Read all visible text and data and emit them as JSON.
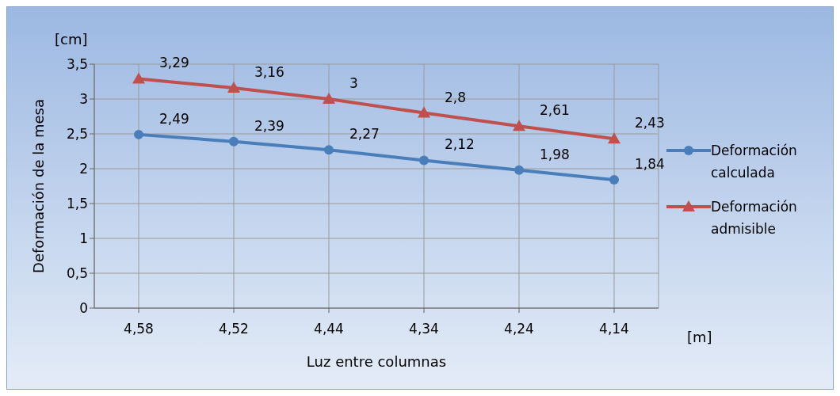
{
  "chart_data": {
    "type": "line",
    "xlabel": "Luz entre columnas",
    "ylabel": "Deformación de la mesa",
    "annotations": [
      "[cm]",
      "[m]"
    ],
    "categories": [
      "4,58",
      "4,52",
      "4,44",
      "4,34",
      "4,24",
      "4,14"
    ],
    "series": [
      {
        "name": "Deformación calculada",
        "color": "#4a7ebb",
        "marker": "circle",
        "values": [
          2.49,
          2.39,
          2.27,
          2.12,
          1.98,
          1.84
        ],
        "value_labels": [
          "2,49",
          "2,39",
          "2,27",
          "2,12",
          "1,98",
          "1,84"
        ]
      },
      {
        "name": "Deformación admisible",
        "color": "#c0504d",
        "marker": "triangle",
        "values": [
          3.29,
          3.16,
          3,
          2.8,
          2.61,
          2.43
        ],
        "value_labels": [
          "3,29",
          "3,16",
          "3",
          "2,8",
          "2,61",
          "2,43"
        ]
      }
    ],
    "ylim": [
      0,
      3.5
    ],
    "yticks": [
      0,
      {
        "value": 0.5,
        "label": "0,5"
      },
      1,
      {
        "value": 1.5,
        "label": "1,5"
      },
      2,
      {
        "value": 2.5,
        "label": "2,5"
      },
      3,
      {
        "value": 3.5,
        "label": "3,5"
      }
    ],
    "grid": true,
    "legend": "right"
  }
}
